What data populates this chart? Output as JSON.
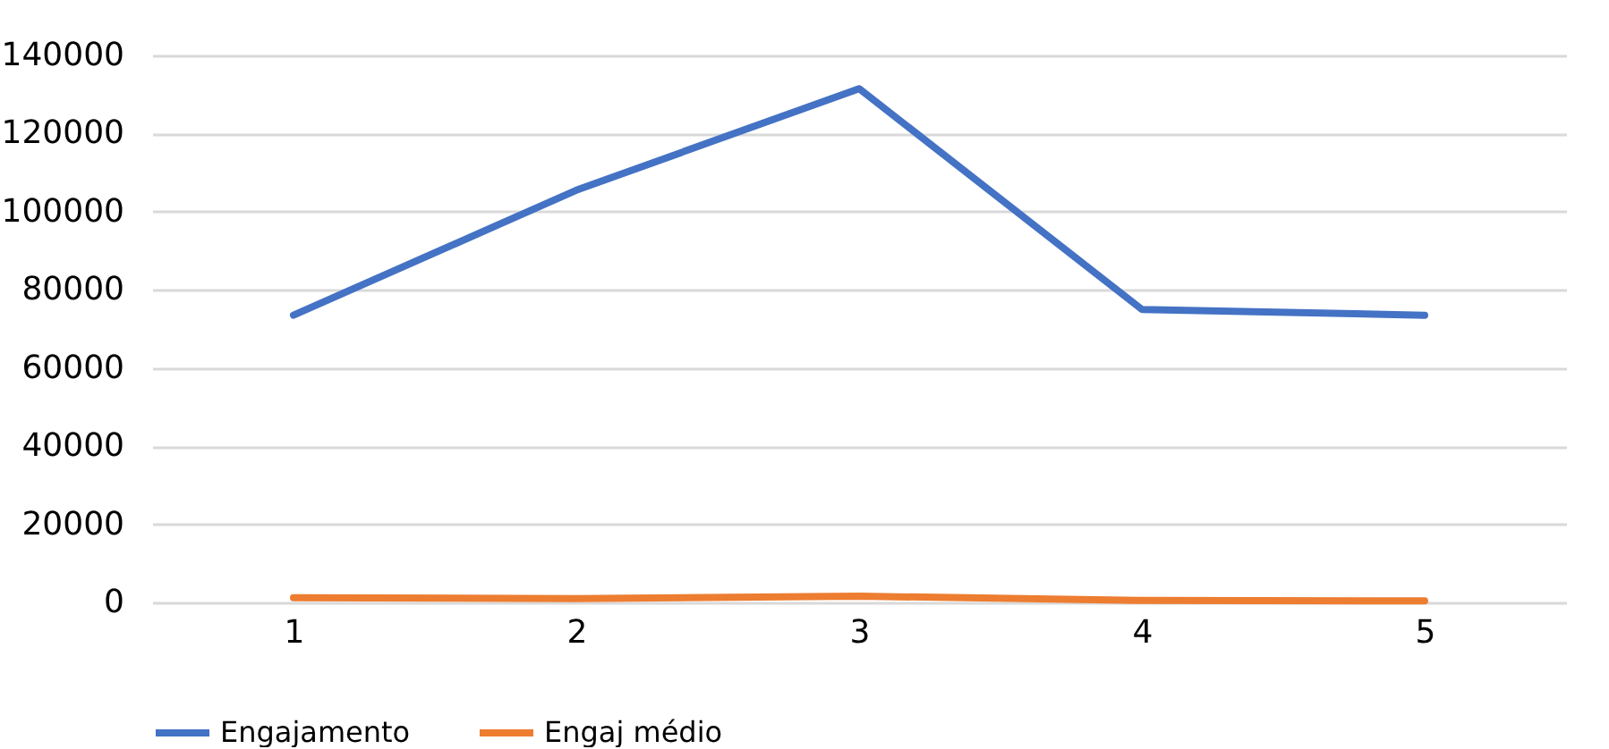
{
  "chart_data": {
    "type": "line",
    "categories": [
      "1",
      "2",
      "3",
      "4",
      "5"
    ],
    "series": [
      {
        "name": "Engajamento",
        "color": "#4472c4",
        "values": [
          73500,
          105500,
          131500,
          75000,
          73500
        ]
      },
      {
        "name": "Engaj médio",
        "color": "#ed7d31",
        "values": [
          1200,
          1000,
          1600,
          500,
          400
        ]
      }
    ],
    "ylim": [
      0,
      140000
    ],
    "yticks": [
      0,
      20000,
      40000,
      60000,
      80000,
      100000,
      120000,
      140000
    ],
    "grid": "y",
    "legend": "bottom",
    "marker": "none",
    "line_style": "solid"
  }
}
